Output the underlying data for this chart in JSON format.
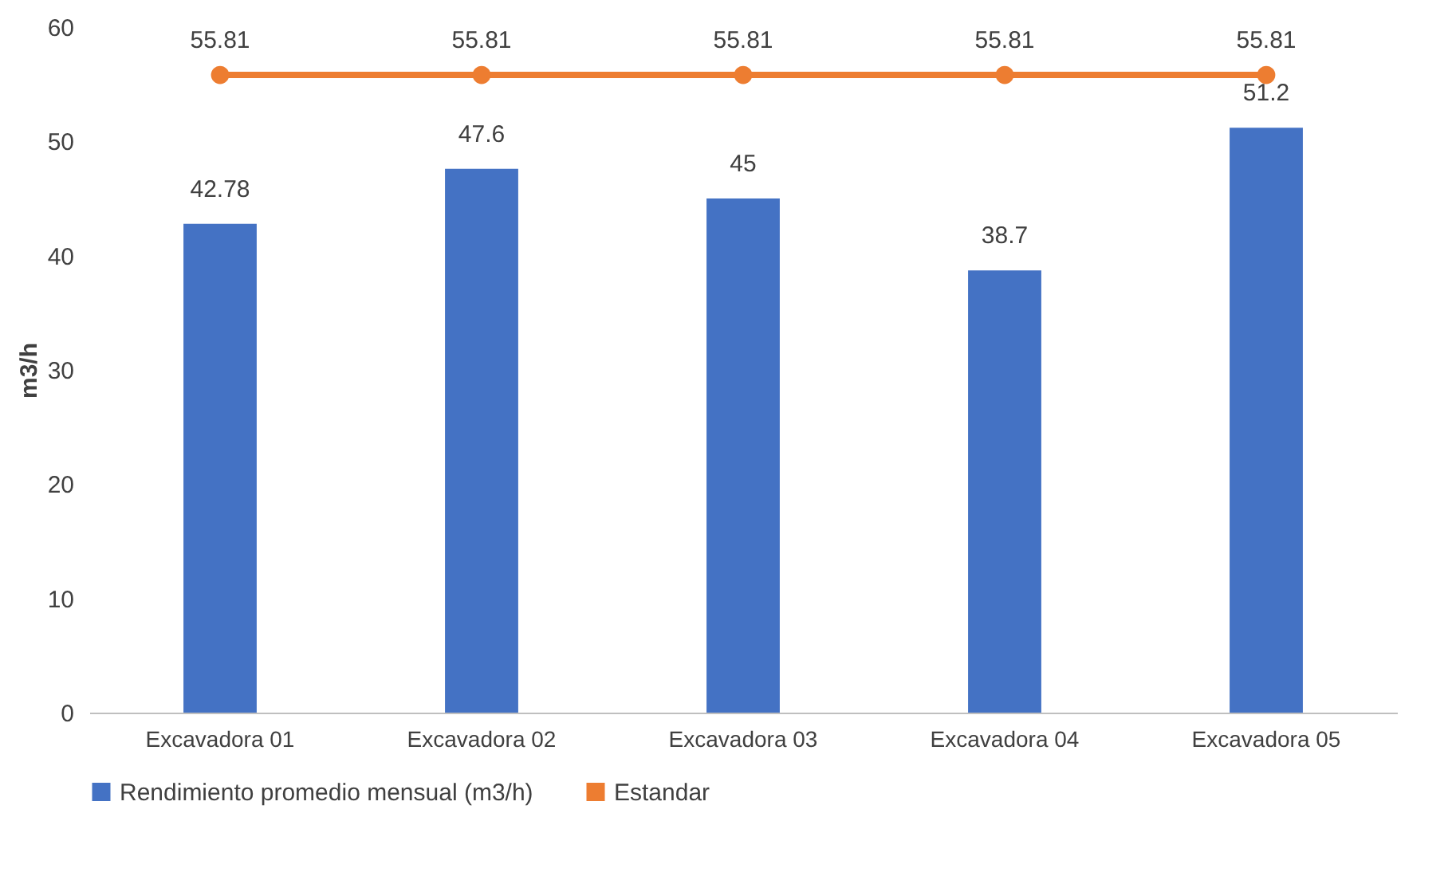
{
  "chart_data": {
    "type": "bar",
    "ylabel": "m3/h",
    "categories": [
      "Excavadora 01",
      "Excavadora 02",
      "Excavadora 03",
      "Excavadora 04",
      "Excavadora 05"
    ],
    "series": [
      {
        "name": "Rendimiento promedio mensual (m3/h)",
        "color": "#4472c4",
        "values": [
          42.78,
          47.6,
          45,
          38.7,
          51.2
        ]
      },
      {
        "name": "Estandar",
        "type": "line",
        "color": "#ed7d31",
        "values": [
          55.81,
          55.81,
          55.81,
          55.81,
          55.81
        ]
      }
    ],
    "ylim": [
      0,
      60
    ],
    "yticks": [
      0,
      10,
      20,
      30,
      40,
      50,
      60
    ],
    "data_labels": true,
    "legend": "bottom",
    "marker": "circle"
  }
}
